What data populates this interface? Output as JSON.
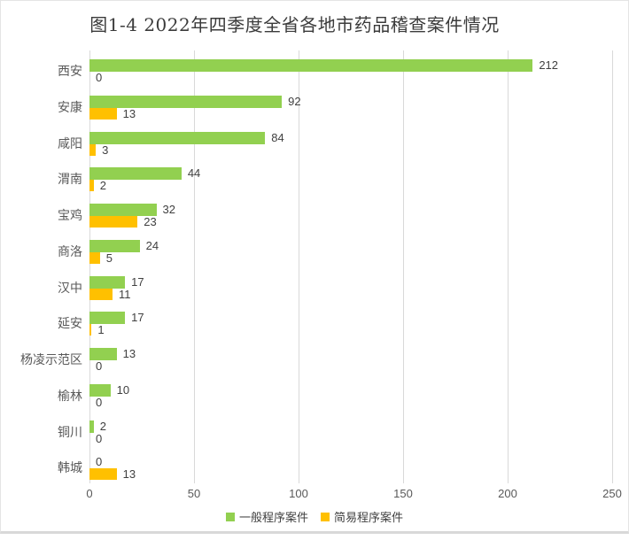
{
  "chart_data": {
    "type": "bar",
    "orientation": "horizontal",
    "title": "图1-4 2022年四季度全省各地市药品稽查案件情况",
    "categories": [
      "西安",
      "安康",
      "咸阳",
      "渭南",
      "宝鸡",
      "商洛",
      "汉中",
      "延安",
      "杨凌示范区",
      "榆林",
      "铜川",
      "韩城"
    ],
    "series": [
      {
        "name": "一般程序案件",
        "color": "#92d050",
        "values": [
          212,
          92,
          84,
          44,
          32,
          24,
          17,
          17,
          13,
          10,
          2,
          0
        ]
      },
      {
        "name": "简易程序案件",
        "color": "#ffc000",
        "values": [
          0,
          13,
          3,
          2,
          23,
          5,
          11,
          1,
          0,
          0,
          0,
          13
        ]
      }
    ],
    "xlabel": "",
    "ylabel": "",
    "xlim": [
      0,
      250
    ],
    "x_ticks": [
      0,
      50,
      100,
      150,
      200,
      250
    ],
    "grid": "vertical-only",
    "gridline_color": "#d9d9d9",
    "data_labels": true,
    "legend_position": "bottom",
    "text_color_axis": "#595959",
    "text_color_values": "#404040",
    "title_color": "#3b3b3b"
  }
}
